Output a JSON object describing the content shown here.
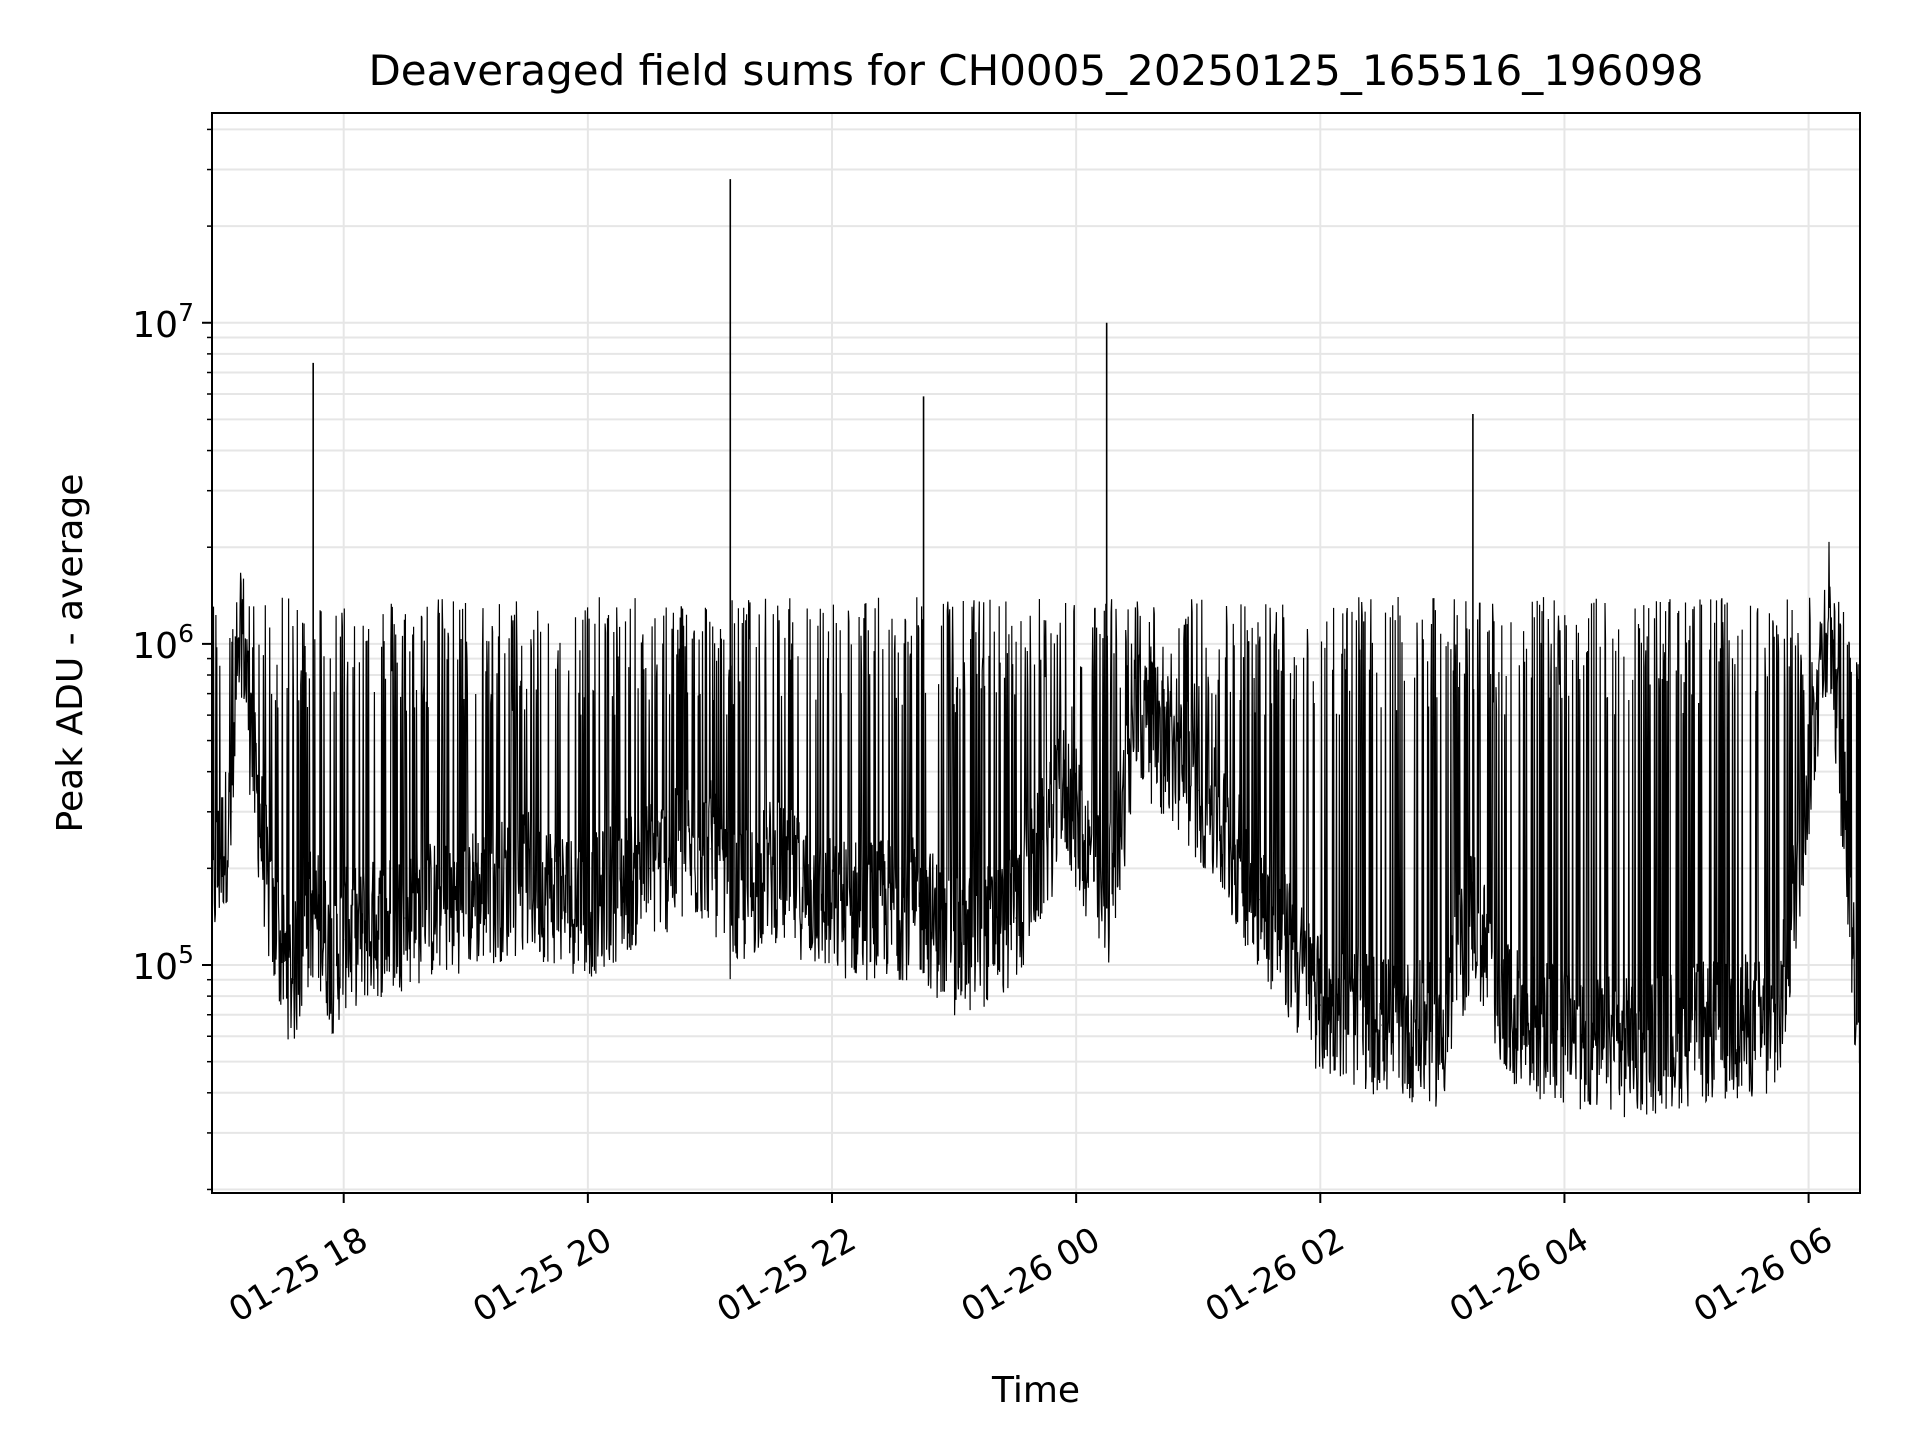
{
  "chart_data": {
    "type": "line",
    "title": "Deaveraged field sums for CH0005_20250125_165516_196098",
    "xlabel": "Time",
    "ylabel": "Peak ADU - average",
    "yscale": "log",
    "grid": true,
    "x_tick_labels": [
      "01-25 18",
      "01-25 20",
      "01-25 22",
      "01-26 00",
      "01-26 02",
      "01-26 04",
      "01-26 06"
    ],
    "y_tick_labels": [
      {
        "base": "10",
        "exp": "5"
      },
      {
        "base": "10",
        "exp": "6"
      },
      {
        "base": "10",
        "exp": "7"
      }
    ],
    "series": [
      {
        "color": "#000000",
        "x": [
          "2025-01-25 16:55",
          "2025-01-25 17:05",
          "2025-01-25 17:10",
          "2025-01-25 17:15",
          "2025-01-25 17:25",
          "2025-01-25 17:35",
          "2025-01-25 17:45",
          "2025-01-25 17:55",
          "2025-01-25 18:00",
          "2025-01-25 18:30",
          "2025-01-25 19:00",
          "2025-01-25 19:30",
          "2025-01-25 20:00",
          "2025-01-25 20:30",
          "2025-01-25 21:00",
          "2025-01-25 21:10",
          "2025-01-25 21:30",
          "2025-01-25 22:00",
          "2025-01-25 22:45",
          "2025-01-25 23:00",
          "2025-01-25 23:30",
          "2025-01-25 23:55",
          "2025-01-26 00:15",
          "2025-01-26 00:30",
          "2025-01-26 01:00",
          "2025-01-26 01:30",
          "2025-01-26 02:00",
          "2025-01-26 02:30",
          "2025-01-26 03:00",
          "2025-01-26 03:15",
          "2025-01-26 03:30",
          "2025-01-26 04:00",
          "2025-01-26 04:30",
          "2025-01-26 05:00",
          "2025-01-26 05:30",
          "2025-01-26 05:45",
          "2025-01-26 06:00",
          "2025-01-26 06:10",
          "2025-01-26 06:20",
          "2025-01-26 06:25"
        ],
        "y": [
          170000,
          300000,
          1200000,
          450000,
          130000,
          90000,
          7500000,
          100000,
          120000,
          140000,
          160000,
          180000,
          150000,
          200000,
          230000,
          28000000,
          200000,
          150000,
          5900000,
          110000,
          140000,
          350000,
          10000000,
          600000,
          350000,
          160000,
          75000,
          65000,
          60000,
          5200000,
          70000,
          60000,
          55000,
          60000,
          65000,
          60000,
          400000,
          1400000,
          180000,
          50000
        ]
      }
    ]
  }
}
